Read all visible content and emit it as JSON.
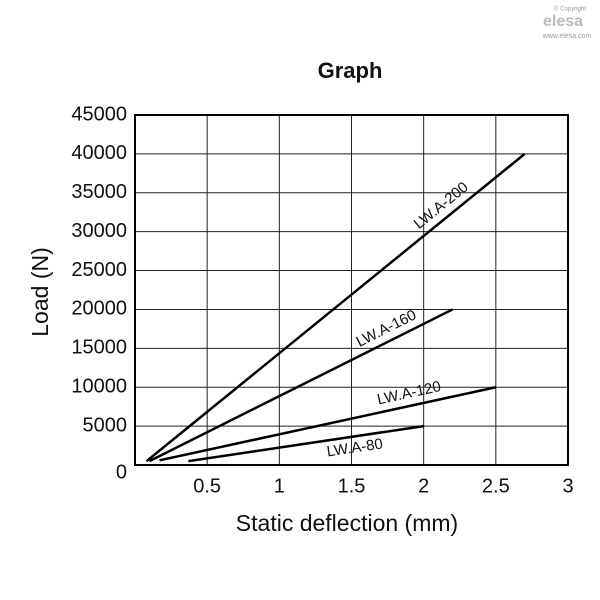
{
  "chart_data": {
    "type": "line",
    "title": "Graph",
    "x_label": "Static deflection (mm)",
    "y_label": "Load (N)",
    "watermark": [
      "© Copyright",
      "elesa",
      "www.elesa.com"
    ],
    "xlim": [
      0,
      3
    ],
    "xticks": [
      0.5,
      1,
      1.5,
      2,
      2.5,
      3
    ],
    "ylim": [
      0,
      45000
    ],
    "yticks": [
      0,
      5000,
      10000,
      15000,
      20000,
      25000,
      30000,
      35000,
      40000,
      45000
    ],
    "grid": true,
    "series": [
      {
        "name": "LW.A-200",
        "color": "#000000",
        "x": [
          0.08,
          2.7
        ],
        "values": [
          500,
          40000
        ]
      },
      {
        "name": "LW.A-160",
        "color": "#000000",
        "x": [
          0.1,
          2.2
        ],
        "values": [
          500,
          20000
        ]
      },
      {
        "name": "LW.A-120",
        "color": "#000000",
        "x": [
          0.17,
          2.5
        ],
        "values": [
          600,
          10000
        ]
      },
      {
        "name": "LW.A-80",
        "color": "#000000",
        "x": [
          0.37,
          2.0
        ],
        "values": [
          500,
          5000
        ]
      }
    ]
  }
}
